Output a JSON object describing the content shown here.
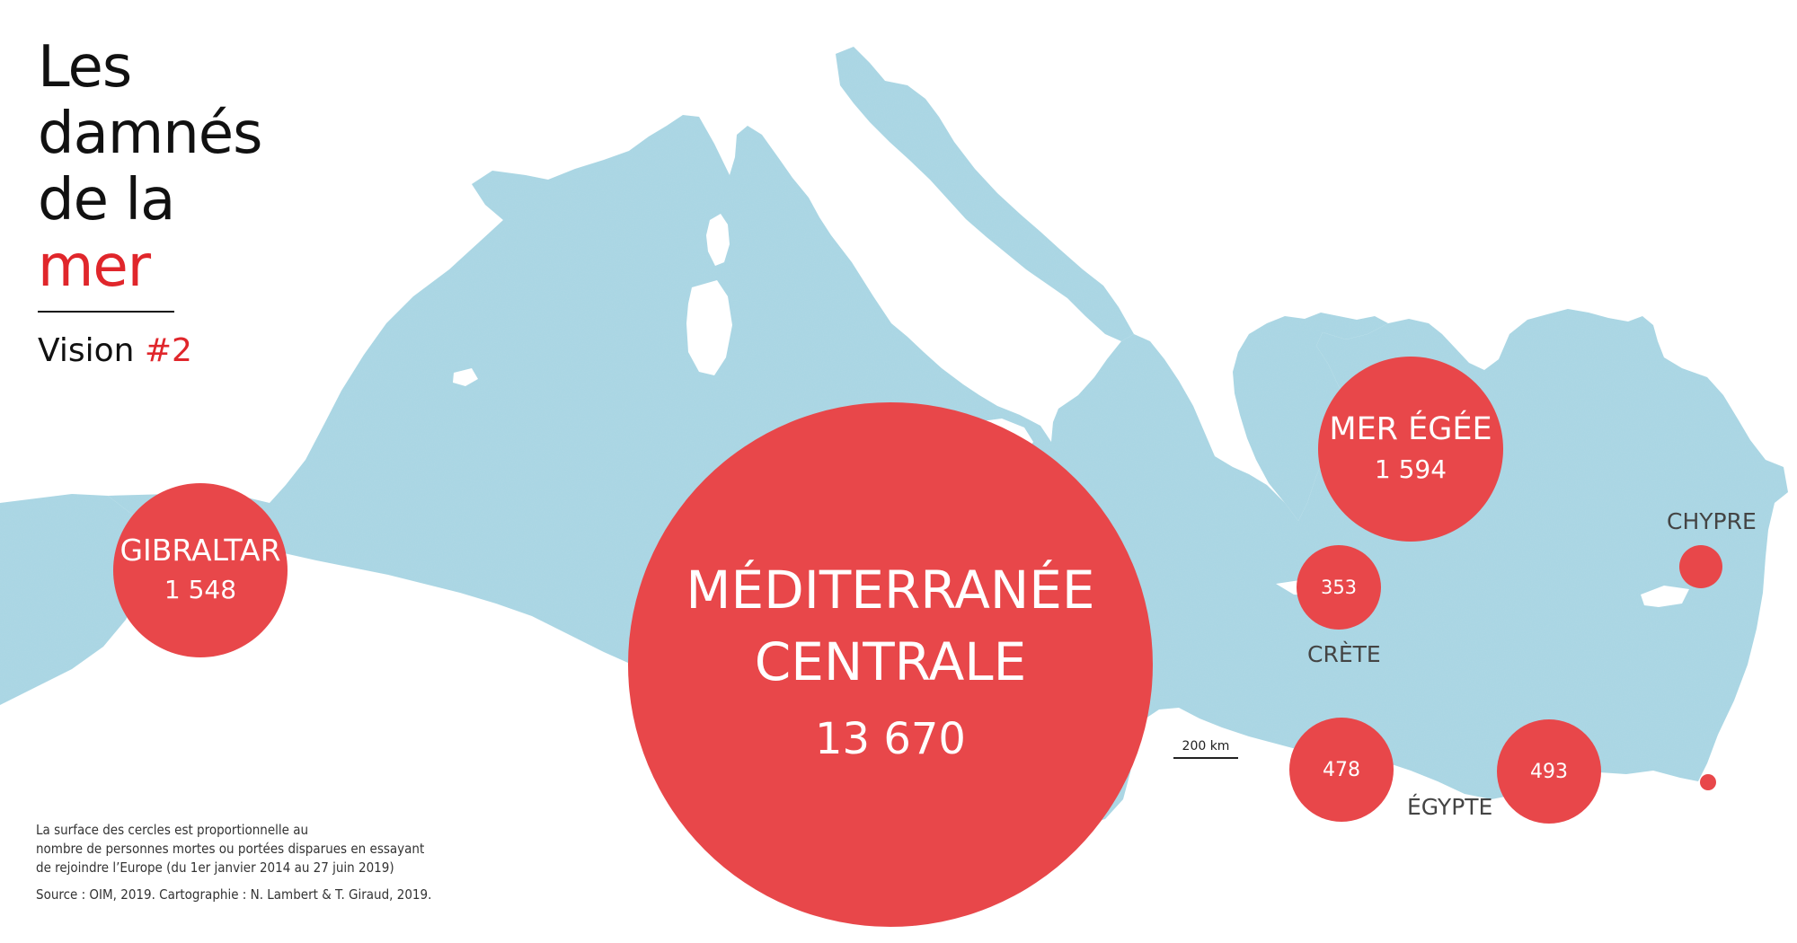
{
  "title": {
    "line1": "Les",
    "line2": "damnés",
    "line3": "de la",
    "line4": "mer"
  },
  "subtitle": {
    "prefix": "Vision ",
    "accent": "#2"
  },
  "note": {
    "line1": "La surface des cercles est proportionnelle au",
    "line2": "nombre de personnes mortes ou portées disparues en essayant",
    "line3": "de rejoindre l’Europe (du 1er janvier 2014 au 27 juin 2019)",
    "source": "Source : OIM, 2019. Cartographie : N. Lambert & T. Giraud, 2019."
  },
  "scale": {
    "label": "200 km"
  },
  "routes": [
    {
      "id": "gibraltar",
      "label": "GIBRALTAR",
      "value_text": "1 548",
      "value": 1548
    },
    {
      "id": "mediterranee-centrale",
      "label_line1": "MÉDITERRANÉE",
      "label_line2": "CENTRALE",
      "value_text": "13 670",
      "value": 13670
    },
    {
      "id": "mer-egee",
      "label": "MER ÉGÉE",
      "value_text": "1 594",
      "value": 1594
    },
    {
      "id": "crete",
      "label": "CRÈTE",
      "value_text": "353",
      "value": 353
    },
    {
      "id": "egypte-1",
      "value_text": "478",
      "value": 478
    },
    {
      "id": "egypte-2",
      "value_text": "493",
      "value": 493
    },
    {
      "id": "chypre",
      "label": "CHYPRE"
    }
  ],
  "places": {
    "crete": "CRÈTE",
    "egypte": "ÉGYPTE",
    "chypre": "CHYPRE"
  },
  "colors": {
    "sea": "#a9d6e3",
    "bubble": "#e8474a",
    "accent": "#e0262b",
    "text": "#111111",
    "place_text": "#444444"
  }
}
